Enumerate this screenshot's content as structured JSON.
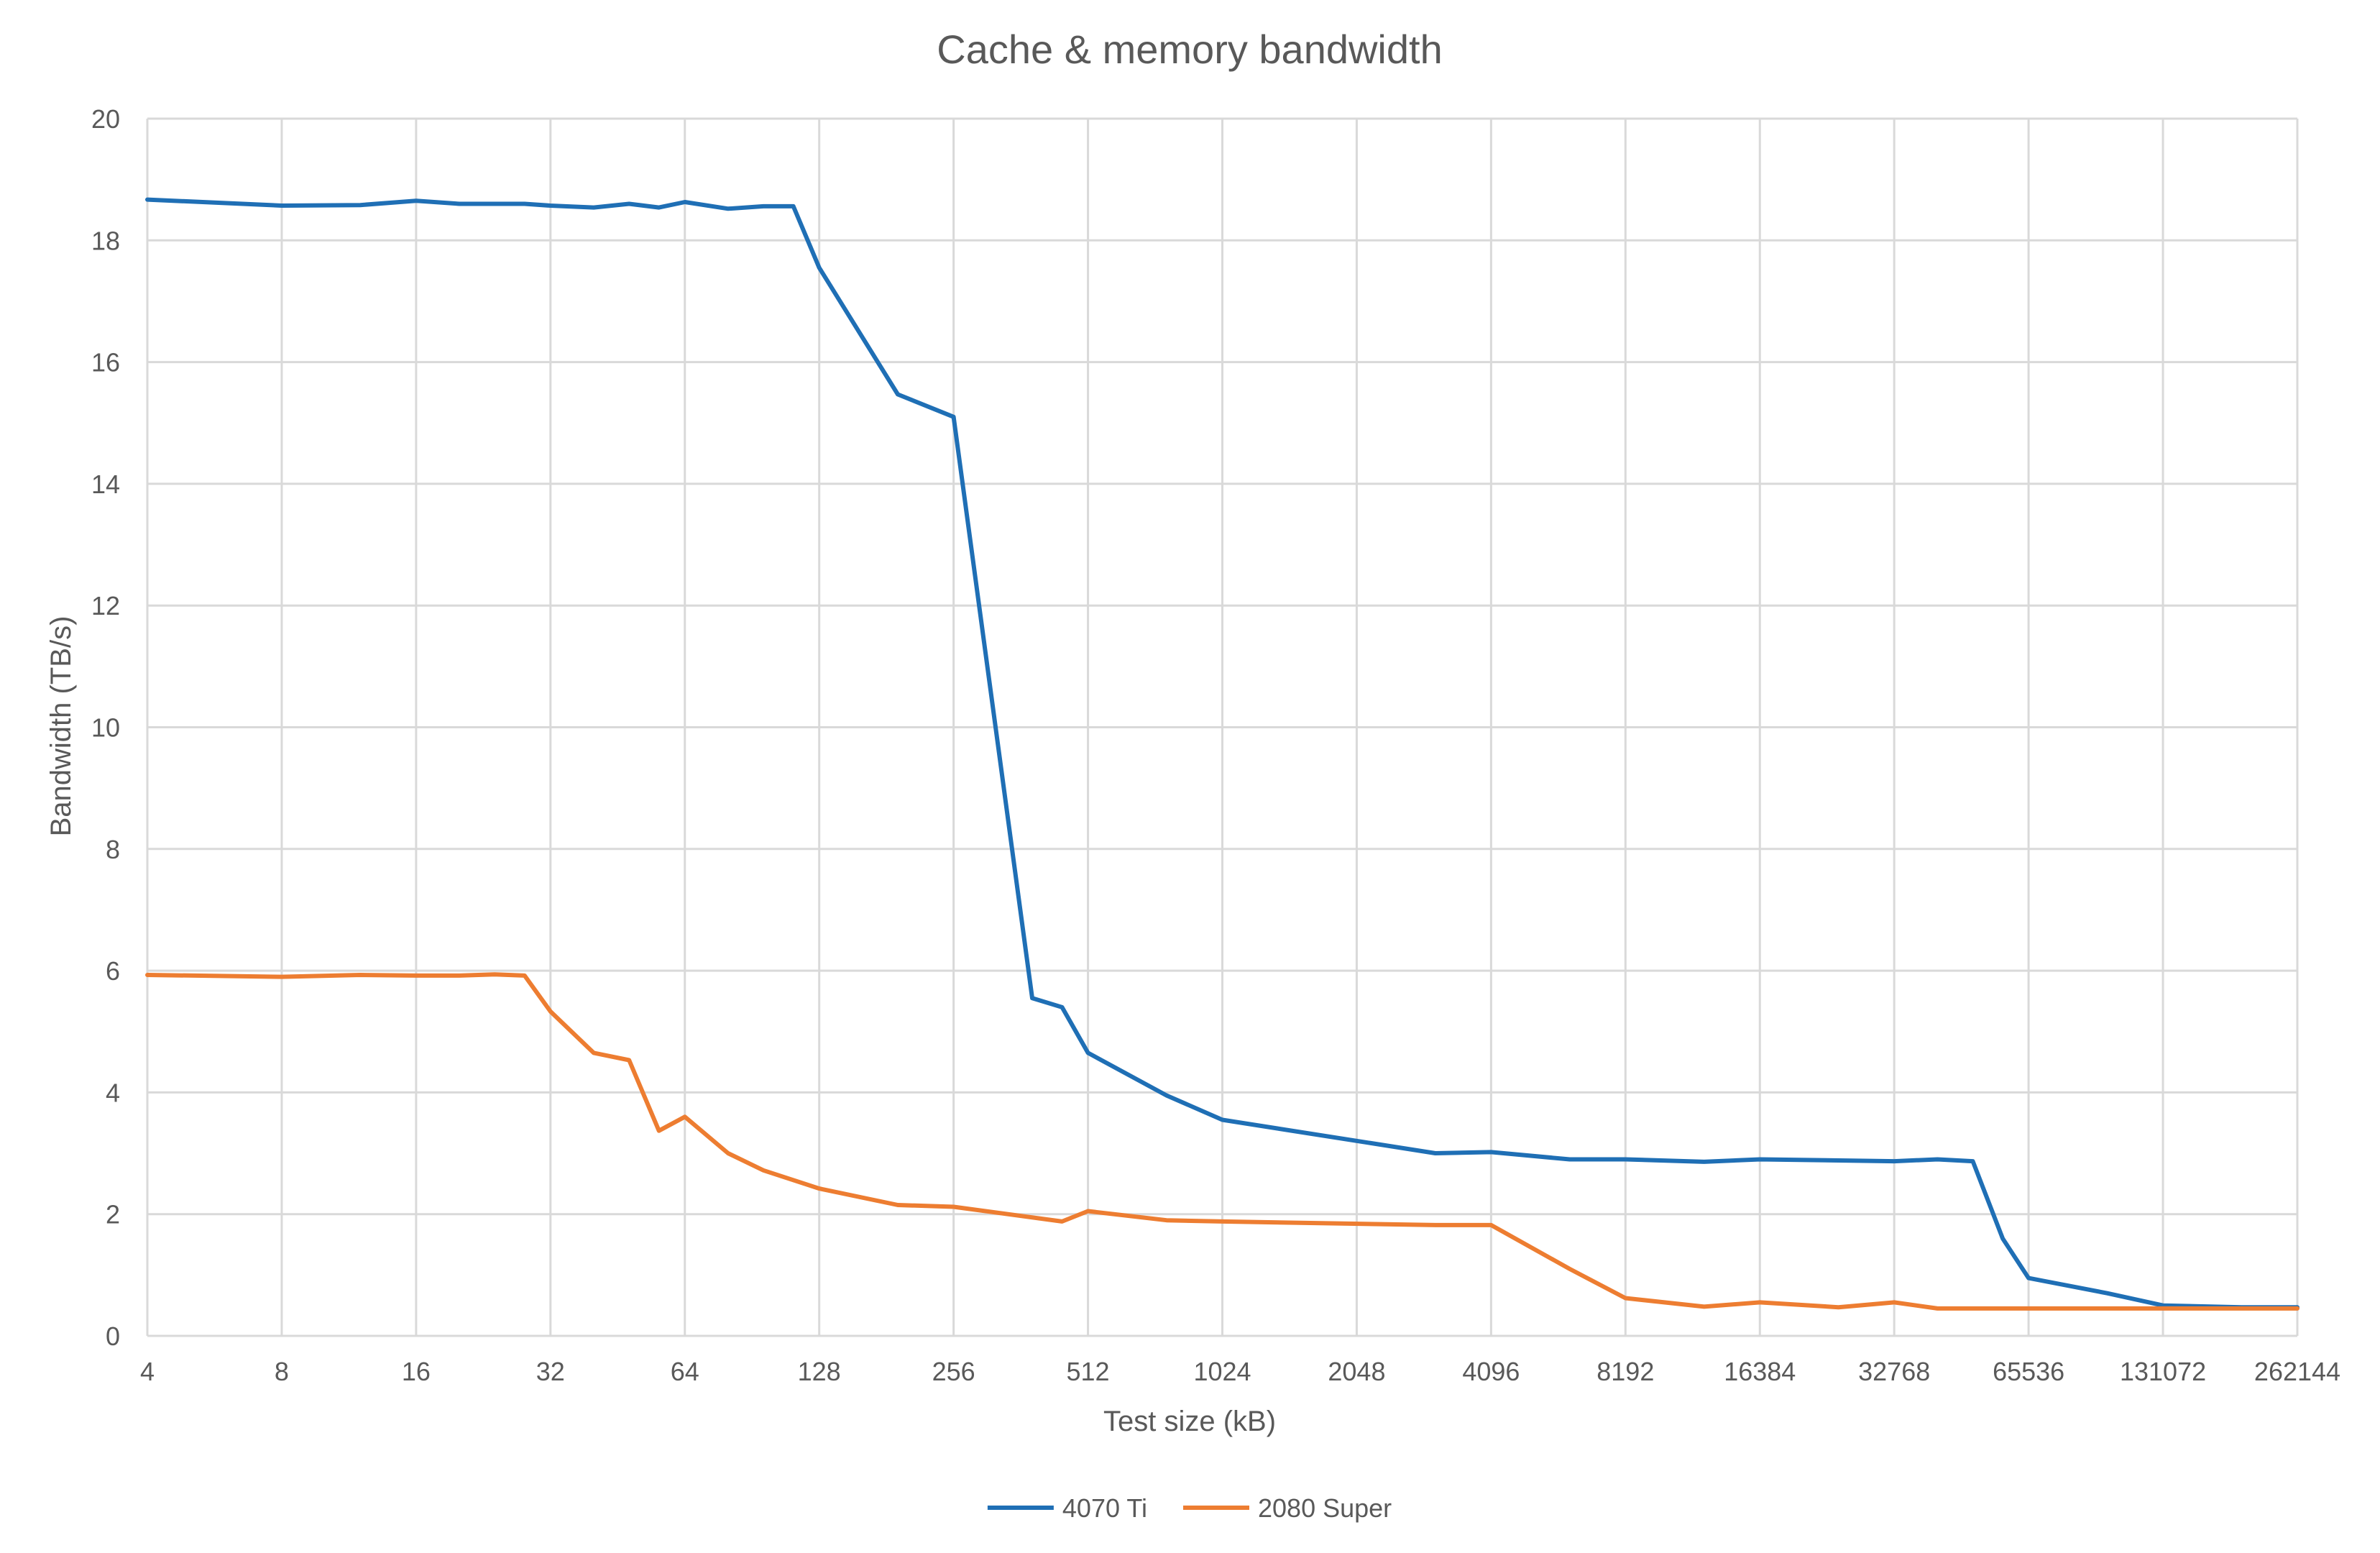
{
  "chart_data": {
    "type": "line",
    "title": "Cache & memory bandwidth",
    "xlabel": "Test size (kB)",
    "ylabel": "Bandwidth (TB/s)",
    "x_scale": "log2",
    "xlim": [
      4,
      262144
    ],
    "ylim": [
      0,
      20
    ],
    "x_ticks": [
      4,
      8,
      16,
      32,
      64,
      128,
      256,
      512,
      1024,
      2048,
      4096,
      8192,
      16384,
      32768,
      65536,
      131072,
      262144
    ],
    "y_ticks": [
      0,
      2,
      4,
      6,
      8,
      10,
      12,
      14,
      16,
      18,
      20
    ],
    "grid": true,
    "legend_position": "bottom",
    "series": [
      {
        "name": "4070 Ti",
        "color": "#1f6fb5",
        "points": [
          [
            4,
            18.67
          ],
          [
            8,
            18.57
          ],
          [
            12,
            18.58
          ],
          [
            16,
            18.65
          ],
          [
            20,
            18.6
          ],
          [
            24,
            18.6
          ],
          [
            28,
            18.6
          ],
          [
            32,
            18.57
          ],
          [
            40,
            18.54
          ],
          [
            48,
            18.6
          ],
          [
            56,
            18.54
          ],
          [
            64,
            18.63
          ],
          [
            80,
            18.52
          ],
          [
            96,
            18.56
          ],
          [
            112,
            18.56
          ],
          [
            128,
            17.55
          ],
          [
            192,
            15.47
          ],
          [
            256,
            15.1
          ],
          [
            384,
            5.55
          ],
          [
            448,
            5.4
          ],
          [
            512,
            4.65
          ],
          [
            768,
            3.95
          ],
          [
            1024,
            3.55
          ],
          [
            3072,
            3.0
          ],
          [
            4096,
            3.02
          ],
          [
            6144,
            2.9
          ],
          [
            8192,
            2.9
          ],
          [
            12288,
            2.86
          ],
          [
            16384,
            2.9
          ],
          [
            32768,
            2.87
          ],
          [
            40960,
            2.9
          ],
          [
            49152,
            2.87
          ],
          [
            57344,
            1.6
          ],
          [
            65536,
            0.95
          ],
          [
            98304,
            0.7
          ],
          [
            131072,
            0.5
          ],
          [
            196608,
            0.47
          ],
          [
            262144,
            0.47
          ]
        ]
      },
      {
        "name": "2080 Super",
        "color": "#ed7d31",
        "points": [
          [
            4,
            5.93
          ],
          [
            8,
            5.9
          ],
          [
            12,
            5.93
          ],
          [
            16,
            5.92
          ],
          [
            20,
            5.92
          ],
          [
            24,
            5.94
          ],
          [
            28,
            5.92
          ],
          [
            32,
            5.33
          ],
          [
            40,
            4.65
          ],
          [
            48,
            4.53
          ],
          [
            56,
            3.37
          ],
          [
            64,
            3.6
          ],
          [
            80,
            3.0
          ],
          [
            96,
            2.72
          ],
          [
            128,
            2.42
          ],
          [
            192,
            2.15
          ],
          [
            256,
            2.12
          ],
          [
            448,
            1.88
          ],
          [
            512,
            2.05
          ],
          [
            768,
            1.9
          ],
          [
            1024,
            1.88
          ],
          [
            3072,
            1.82
          ],
          [
            4096,
            1.82
          ],
          [
            6144,
            1.1
          ],
          [
            8192,
            0.62
          ],
          [
            12288,
            0.48
          ],
          [
            16384,
            0.55
          ],
          [
            24576,
            0.47
          ],
          [
            32768,
            0.55
          ],
          [
            40960,
            0.45
          ],
          [
            65536,
            0.45
          ],
          [
            131072,
            0.45
          ],
          [
            262144,
            0.45
          ]
        ]
      }
    ]
  }
}
